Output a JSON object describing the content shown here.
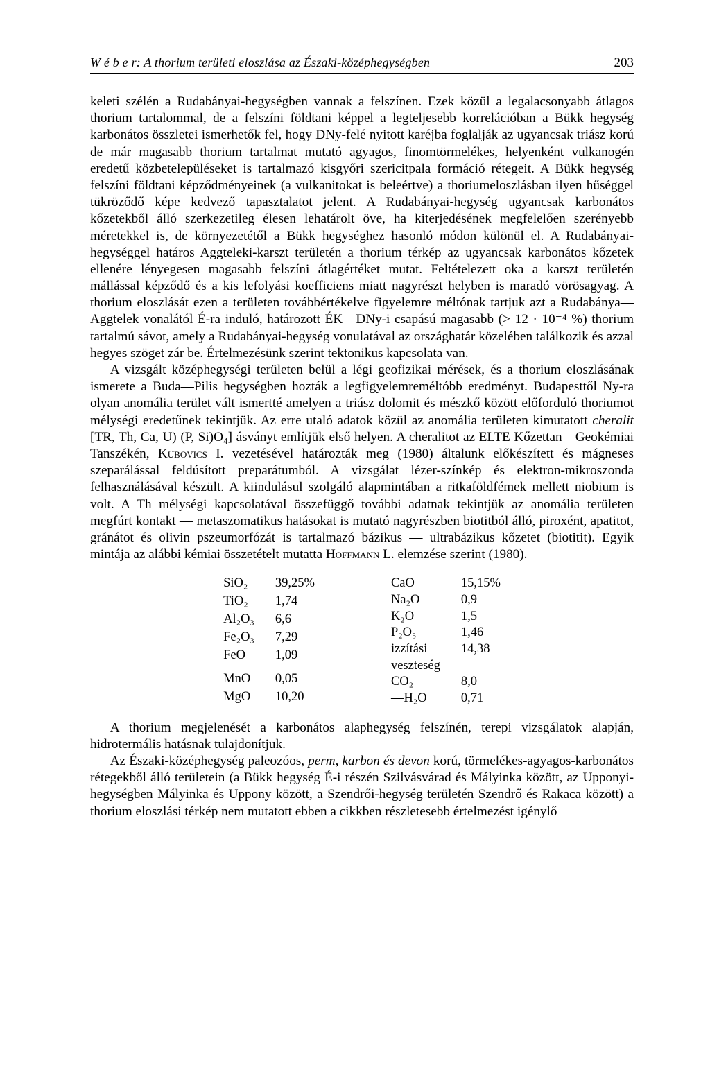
{
  "header": {
    "title": "W é b e r:  A thorium területi eloszlása az Északi-középhegységben",
    "page_number": "203"
  },
  "paragraphs": {
    "p1": "keleti szélén a Rudabányai-hegységben vannak a felszínen. Ezek közül a legalacsonyabb átlagos thorium tartalommal, de a felszíni földtani képpel a legteljesebb korrelációban a Bükk hegység karbonátos összletei ismerhetők fel, hogy DNy-felé nyitott karéjba foglalják az ugyancsak triász korú de már magasabb thorium tartalmat mutató agyagos, finomtörmelékes, helyenként vulkanogén eredetű közbetelepüléseket is tartalmazó kisgyőri szericitpala formáció rétegeit. A Bükk hegység felszíni földtani képződményeinek (a vulkanitokat is beleértve) a thoriumeloszlásban ilyen hűséggel tükröződő képe kedvező tapasztalatot jelent. A Rudabányai-hegység ugyancsak karbonátos kőzetekből álló szerkezetileg élesen lehatárolt öve, ha kiterjedésének megfelelően szerényebb méretekkel is, de környezetétől a Bükk hegységhez hasonló módon különül el. A Rudabányai-hegységgel határos Aggteleki-karszt területén a thorium térkép az ugyancsak karbonátos kőzetek ellenére lényegesen magasabb felszíni átlagértéket mutat. Feltételezett oka a karszt területén mállással képződő és a kis lefolyási koefficiens miatt nagyrészt helyben is maradó vörösagyag. A thorium eloszlását ezen a területen továbbértékelve figyelemre méltónak tartjuk azt a Rudabánya—Aggtelek vonalától É-ra induló, határozott ÉK—DNy-i csapású magasabb (> 12 · 10⁻⁴ %) thorium tartalmú sávot, amely a Rudabányai-hegység vonulatával az országhatár közelében találkozik és azzal hegyes szöget zár be. Értelmezésünk szerint tektonikus kapcsolata van.",
    "p2_a": "A vizsgált középhegységi területen belül a légi geofizikai mérések, és a thorium eloszlásának ismerete a Buda—Pilis hegységben hozták a legfigyelemreméltóbb eredményt. Budapesttől Ny-ra olyan anomália terület vált ismertté amelyen a triász dolomit és mészkő között előforduló thoriumot mélységi eredetűnek tekintjük. Az erre utaló adatok közül az anomália területen kimutatott ",
    "p2_cheralit": "cheralit",
    "p2_b": " [TR, Th, Ca, U) (P, Si)O₄] ásványt említjük első helyen. A cheralitot az ELTE Kőzettan—Geokémiai Tanszékén, ",
    "p2_kubovics": "Kubovics",
    "p2_c": " I. vezetésével határozták meg (1980) általunk előkészített és mágneses szeparálással feldúsított preparátumból. A vizsgálat lézer-színkép és elektron-mikroszonda felhasználásával készült. A kiindulásul szolgáló alapmintában a ritkaföldfémek mellett niobium is volt. A Th mélységi kapcsolatával összefüggő további adatnak tekintjük az anomália területen megfúrt kontakt — metaszomatikus hatásokat is mutató nagyrészben biotitból álló, piroxént, apatitot, gránátot és olivin pszeumorfózát is tartalmazó bázikus — ultrabázikus kőzetet (biotitit). Egyik mintája az alábbi kémiai összetételt mutatta ",
    "p2_hoffmann": "Hoffmann",
    "p2_d": " L. elemzése szerint (1980).",
    "p3": "A thorium megjelenését a karbonátos alaphegység felszínén, terepi vizsgálatok alapján, hidrotermális hatásnak tulajdonítjuk.",
    "p4_a": "Az Északi-középhegység paleozóos, ",
    "p4_i": "perm, karbon és devon",
    "p4_b": " korú, törmelékes-agyagos-karbonátos rétegekből álló területein (a Bükk hegység É-i részén Szilvásvárad és Mályinka között, az Upponyi-hegységben Mályinka és Uppony között, a Szendrői-hegység területén Szendrő és Rakaca között) a thorium eloszlási térkép nem mutatott ebben a cikkben részletesebb értelmezést igénylő"
  },
  "chem_table": {
    "left": [
      {
        "label": "SiO₂",
        "value": "39,25%"
      },
      {
        "label": "TiO₂",
        "value": "1,74"
      },
      {
        "label": "Al₂O₃",
        "value": "6,6"
      },
      {
        "label": "Fe₂O₃",
        "value": "7,29"
      },
      {
        "label": "FeO",
        "value": "1,09"
      },
      {
        "label": "",
        "value": ""
      },
      {
        "label": "MnO",
        "value": "0,05"
      },
      {
        "label": "MgO",
        "value": "10,20"
      }
    ],
    "right": [
      {
        "label": "CaO",
        "value": "15,15%"
      },
      {
        "label": "Na₂O",
        "value": "0,9"
      },
      {
        "label": "K₂O",
        "value": "1,5"
      },
      {
        "label": "P₂O₅",
        "value": "1,46"
      },
      {
        "label": "izzítási",
        "value": "14,38"
      },
      {
        "label": "veszteség",
        "value": ""
      },
      {
        "label": "CO₂",
        "value": "8,0"
      },
      {
        "label": "—H₂O",
        "value": "0,71"
      }
    ]
  }
}
